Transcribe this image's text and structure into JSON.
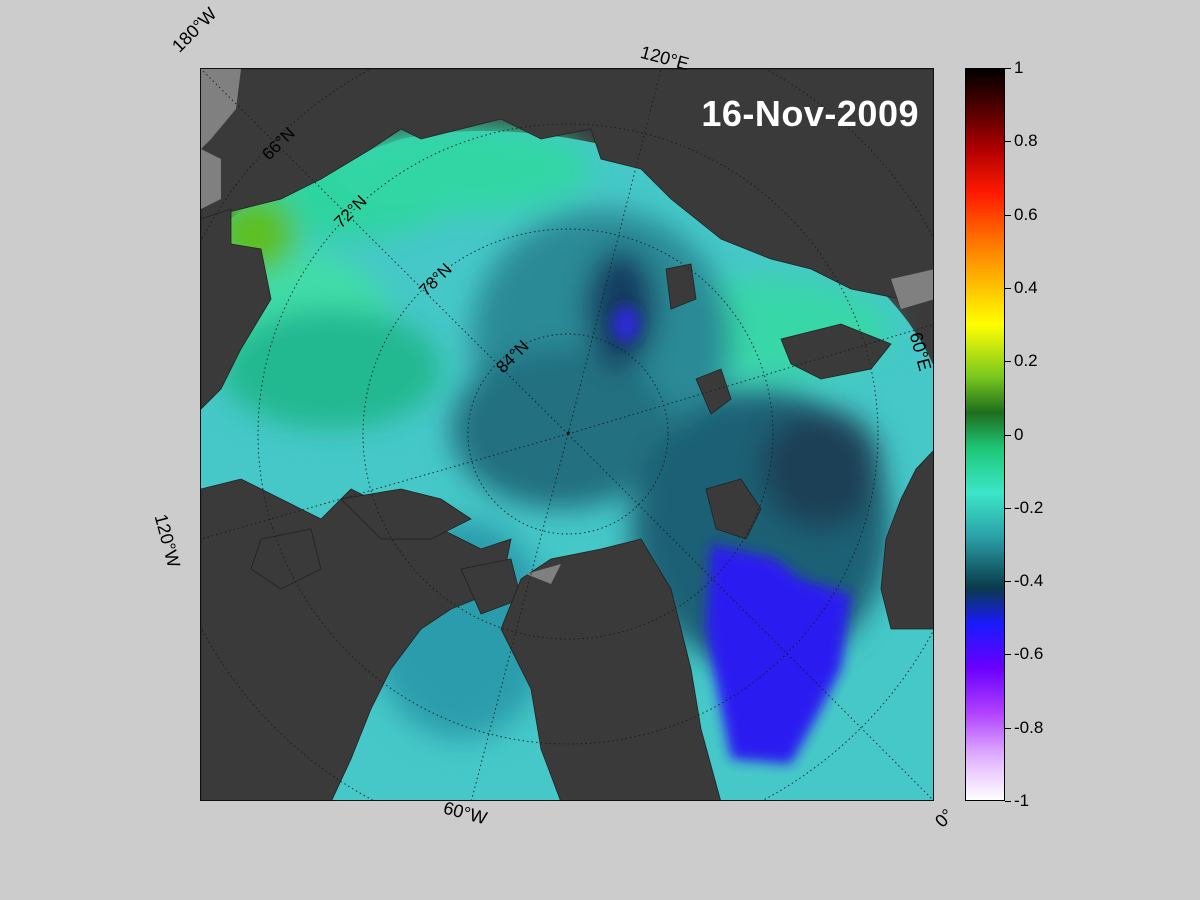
{
  "map": {
    "date": "16-Nov-2009",
    "lon_labels": {
      "w180": "180°W",
      "e120": "120°E",
      "e60": "60°E",
      "w120": "120°W",
      "w60": "60°W",
      "zero": "0°"
    },
    "lat_labels": {
      "n66": "66°N",
      "n72": "72°N",
      "n78": "78°N",
      "n84": "84°N"
    },
    "colors": {
      "background": "#cccccc",
      "land": "#3a3a3a",
      "ice_shelf": "#808080"
    }
  },
  "colorbar": {
    "ticks": [
      "1",
      "0.8",
      "0.6",
      "0.4",
      "0.2",
      "0",
      "-0.2",
      "-0.4",
      "-0.6",
      "-0.8",
      "-1"
    ],
    "min": -1,
    "max": 1
  }
}
